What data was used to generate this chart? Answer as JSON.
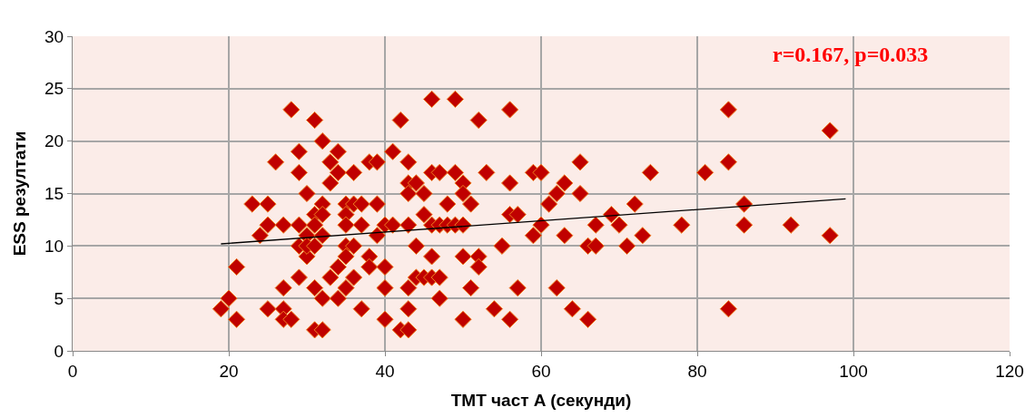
{
  "chart_data": {
    "type": "scatter",
    "xlabel": "TMT част A (секунди)",
    "ylabel": "ESS резултати",
    "xlim": [
      0,
      120
    ],
    "xticks": [
      0,
      20,
      40,
      60,
      80,
      100,
      120
    ],
    "ylim": [
      0,
      30
    ],
    "yticks": [
      0,
      5,
      10,
      15,
      20,
      25,
      30
    ],
    "grid": true,
    "annotations": [
      "r=0.167, p=0.033"
    ],
    "series": [
      {
        "marker": "diamond",
        "color": "#c00000",
        "x": [
          19,
          20,
          21,
          21,
          23,
          24,
          25,
          25,
          25,
          26,
          27,
          27,
          27,
          27,
          28,
          28,
          29,
          29,
          29,
          29,
          29,
          30,
          30,
          30,
          30,
          31,
          31,
          31,
          31,
          31,
          31,
          32,
          32,
          32,
          32,
          32,
          32,
          33,
          33,
          33,
          34,
          34,
          34,
          34,
          35,
          35,
          35,
          35,
          35,
          35,
          36,
          36,
          36,
          36,
          37,
          37,
          37,
          38,
          38,
          38,
          39,
          39,
          39,
          40,
          40,
          40,
          40,
          41,
          41,
          42,
          42,
          43,
          43,
          43,
          43,
          43,
          43,
          43,
          44,
          44,
          44,
          45,
          45,
          45,
          46,
          46,
          46,
          46,
          46,
          47,
          47,
          47,
          47,
          48,
          48,
          49,
          49,
          49,
          50,
          50,
          50,
          50,
          50,
          51,
          51,
          52,
          52,
          52,
          53,
          54,
          55,
          56,
          56,
          56,
          56,
          57,
          57,
          59,
          59,
          60,
          60,
          61,
          62,
          62,
          63,
          63,
          64,
          65,
          65,
          66,
          66,
          67,
          67,
          69,
          70,
          71,
          72,
          73,
          74,
          78,
          81,
          84,
          84,
          84,
          86,
          86,
          92,
          97,
          97
        ],
        "values": [
          4,
          5,
          3,
          8,
          14,
          11,
          12,
          14,
          4,
          18,
          12,
          6,
          4,
          3,
          23,
          3,
          12,
          19,
          17,
          10,
          7,
          15,
          11,
          9,
          10,
          22,
          13,
          12,
          10,
          6,
          2,
          20,
          14,
          13,
          11,
          5,
          2,
          18,
          16,
          7,
          19,
          17,
          8,
          5,
          14,
          13,
          12,
          10,
          9,
          6,
          17,
          14,
          10,
          7,
          14,
          12,
          4,
          18,
          9,
          8,
          18,
          14,
          11,
          12,
          8,
          6,
          3,
          19,
          12,
          22,
          2,
          18,
          16,
          15,
          12,
          6,
          4,
          2,
          16,
          10,
          7,
          15,
          13,
          7,
          24,
          17,
          12,
          9,
          7,
          17,
          12,
          7,
          5,
          14,
          12,
          24,
          17,
          12,
          16,
          15,
          12,
          9,
          3,
          14,
          6,
          22,
          9,
          8,
          17,
          4,
          10,
          23,
          16,
          13,
          3,
          13,
          6,
          17,
          11,
          17,
          12,
          14,
          15,
          6,
          16,
          11,
          4,
          18,
          15,
          10,
          3,
          12,
          10,
          13,
          12,
          10,
          14,
          11,
          17,
          12,
          17,
          23,
          18,
          4,
          14,
          12,
          12,
          21,
          11
        ]
      },
      {
        "type": "line",
        "marker": "none",
        "color": "#000000",
        "x": [
          19,
          99
        ],
        "values": [
          10.2,
          14.5
        ]
      }
    ]
  }
}
